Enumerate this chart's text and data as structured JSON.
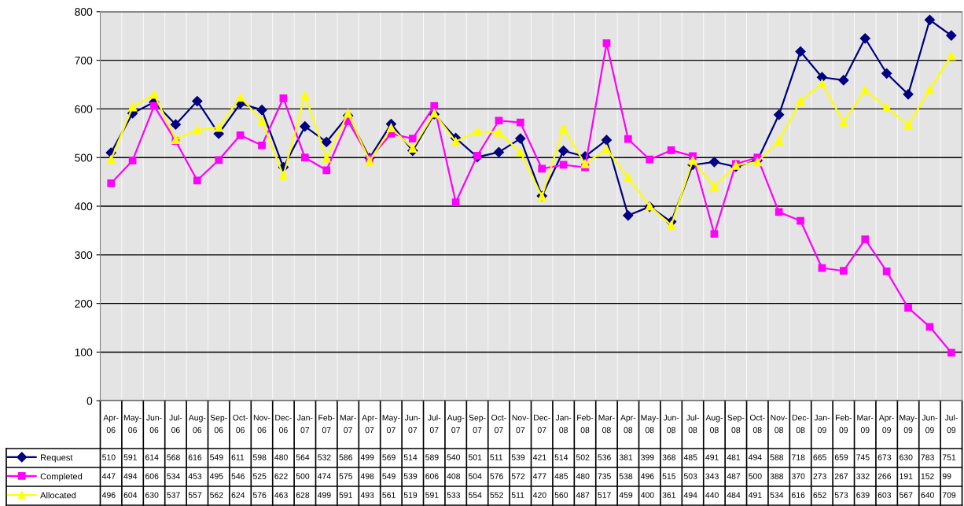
{
  "chart_data": {
    "type": "line",
    "categories": [
      "Apr-06",
      "May-06",
      "Jun-06",
      "Jul-06",
      "Aug-06",
      "Sep-06",
      "Oct-06",
      "Nov-06",
      "Dec-06",
      "Jan-07",
      "Feb-07",
      "Mar-07",
      "Apr-07",
      "May-07",
      "Jun-07",
      "Jul-07",
      "Aug-07",
      "Sep-07",
      "Oct-07",
      "Nov-07",
      "Dec-07",
      "Jan-08",
      "Feb-08",
      "Mar-08",
      "Apr-08",
      "May-08",
      "Jun-08",
      "Jul-08",
      "Aug-08",
      "Sep-08",
      "Oct-08",
      "Nov-08",
      "Dec-08",
      "Jan-09",
      "Feb-09",
      "Mar-09",
      "Apr-09",
      "May-09",
      "Jun-09",
      "Jul-09"
    ],
    "series": [
      {
        "name": "Request",
        "color": "#000080",
        "marker": "diamond",
        "values": [
          510,
          591,
          614,
          568,
          616,
          549,
          611,
          598,
          480,
          564,
          532,
          586,
          499,
          569,
          514,
          589,
          540,
          501,
          511,
          539,
          421,
          514,
          502,
          536,
          381,
          399,
          368,
          485,
          491,
          481,
          494,
          588,
          718,
          665,
          659,
          745,
          673,
          630,
          783,
          751
        ]
      },
      {
        "name": "Completed",
        "color": "#ff00ff",
        "marker": "square",
        "values": [
          447,
          494,
          606,
          534,
          453,
          495,
          546,
          525,
          622,
          500,
          474,
          575,
          498,
          549,
          539,
          606,
          408,
          504,
          576,
          572,
          477,
          485,
          480,
          735,
          538,
          496,
          515,
          503,
          343,
          487,
          500,
          388,
          370,
          273,
          267,
          332,
          266,
          191,
          152,
          99
        ]
      },
      {
        "name": "Allocated",
        "color": "#ffff00",
        "marker": "triangle",
        "values": [
          496,
          604,
          630,
          537,
          557,
          562,
          624,
          576,
          463,
          628,
          499,
          591,
          493,
          561,
          519,
          591,
          533,
          554,
          552,
          511,
          420,
          560,
          487,
          517,
          459,
          400,
          361,
          494,
          440,
          484,
          491,
          534,
          616,
          652,
          573,
          639,
          603,
          567,
          640,
          709
        ]
      }
    ],
    "ylim": [
      0,
      800
    ],
    "yticks": [
      0,
      100,
      200,
      300,
      400,
      500,
      600,
      700,
      800
    ],
    "grid": "y",
    "legend": "bottom",
    "data_labels": true,
    "line_style": "solid"
  }
}
